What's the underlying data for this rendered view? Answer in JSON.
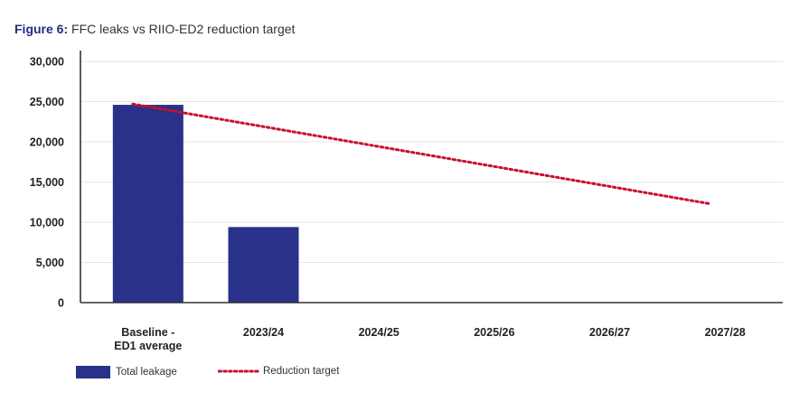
{
  "figure": {
    "number_label": "Figure 6:",
    "title_text": "FFC leaks vs RIIO-ED2 reduction target"
  },
  "colors": {
    "bar": "#29318a",
    "target_line": "#c8102e",
    "gridline": "#e6e6e6",
    "axis": "#333333"
  },
  "chart_data": {
    "type": "bar",
    "title": "FFC leaks vs RIIO-ED2 reduction target",
    "xlabel": "",
    "ylabel": "",
    "ylim": [
      0,
      30000
    ],
    "yticks": [
      0,
      5000,
      10000,
      15000,
      20000,
      25000,
      30000
    ],
    "ytick_labels": [
      "0",
      "5,000",
      "10,000",
      "15,000",
      "20,000",
      "25,000",
      "30,000"
    ],
    "categories": [
      [
        "Baseline -",
        "ED1 average"
      ],
      [
        "2023/24"
      ],
      [
        "2024/25"
      ],
      [
        "2025/26"
      ],
      [
        "2026/27"
      ],
      [
        "2027/28"
      ]
    ],
    "grid": true,
    "legend_position": "bottom-left",
    "series": [
      {
        "name": "Total leakage",
        "type": "bar",
        "values": [
          24600,
          9400,
          null,
          null,
          null,
          null
        ]
      },
      {
        "name": "Reduction target",
        "type": "line",
        "style": "dotted",
        "values": [
          24700,
          null,
          null,
          null,
          null,
          12300
        ]
      }
    ]
  }
}
